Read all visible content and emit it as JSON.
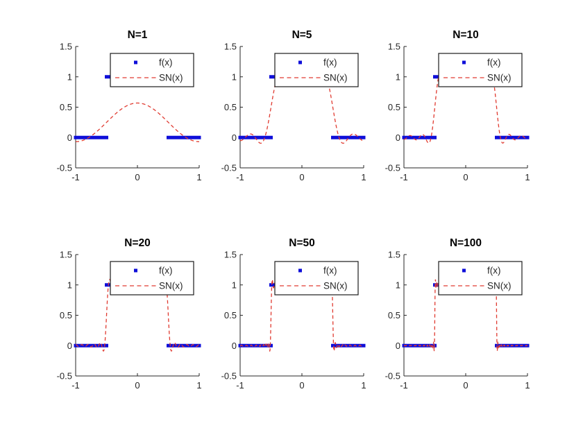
{
  "chart_data": {
    "type": "line",
    "layout": {
      "rows": 2,
      "cols": 3
    },
    "grid": "off",
    "x_range": [
      -1,
      1
    ],
    "y_range": [
      -0.5,
      1.5
    ],
    "x_ticks": [
      {
        "v": -1,
        "label": "-1"
      },
      {
        "v": 0,
        "label": "0"
      },
      {
        "v": 1,
        "label": "1"
      }
    ],
    "y_ticks": [
      {
        "v": -0.5,
        "label": "-0.5"
      },
      {
        "v": 0,
        "label": "0"
      },
      {
        "v": 0.5,
        "label": "0.5"
      },
      {
        "v": 1,
        "label": "1"
      },
      {
        "v": 1.5,
        "label": "1.5"
      }
    ],
    "legend": {
      "position": "northeast",
      "entries": [
        {
          "label": "f(x)",
          "type": "marker",
          "marker": "square",
          "color": "#0f0fd9"
        },
        {
          "label": "SN(x)",
          "type": "line",
          "style": "dashed",
          "color": "#e03a30"
        }
      ]
    },
    "f_function": {
      "name": "f(x)",
      "color": "#0f0fd9",
      "segments": [
        {
          "x0": -1,
          "x1": -0.5,
          "y": 0
        },
        {
          "x0": -0.5,
          "x1": 0.5,
          "y": 1
        },
        {
          "x0": 0.5,
          "x1": 1,
          "y": 0
        }
      ]
    },
    "sn_function": {
      "name": "SN(x)",
      "color": "#e03a30",
      "style": "dashed",
      "model": "SN(x) = a0 + coef_scale * sum_{n=1..N} (2/(n*pi)) * sin(n*pi/2) * cos(n*pi*x)"
    },
    "subplots": [
      {
        "title": "N=1",
        "N": 1,
        "a0": 0.25,
        "coef_scale": 0.5
      },
      {
        "title": "N=5",
        "N": 5,
        "a0": 0.5,
        "coef_scale": 1
      },
      {
        "title": "N=10",
        "N": 10,
        "a0": 0.5,
        "coef_scale": 1
      },
      {
        "title": "N=20",
        "N": 20,
        "a0": 0.5,
        "coef_scale": 1
      },
      {
        "title": "N=50",
        "N": 50,
        "a0": 0.5,
        "coef_scale": 1
      },
      {
        "title": "N=100",
        "N": 100,
        "a0": 0.5,
        "coef_scale": 1
      }
    ],
    "colors": {
      "axis": "#262626",
      "tick_label": "#262626",
      "title": "#000000",
      "legend_border": "#1a1a1a",
      "legend_background": "#ffffff",
      "background": "#ffffff"
    }
  }
}
